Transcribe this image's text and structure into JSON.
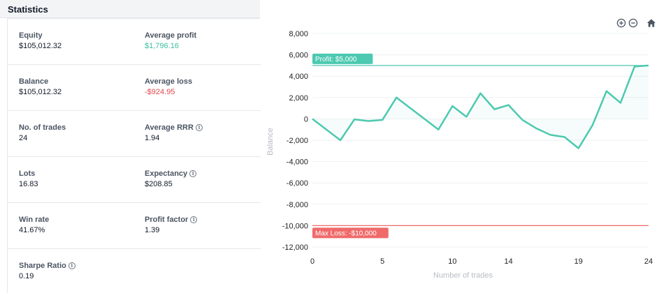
{
  "statistics": {
    "title": "Statistics",
    "rows": [
      {
        "left": {
          "label": "Equity",
          "value": "$105,012.32",
          "info": false
        },
        "right": {
          "label": "Average profit",
          "value": "$1,796.16",
          "info": false,
          "tone": "pos"
        }
      },
      {
        "left": {
          "label": "Balance",
          "value": "$105,012.32",
          "info": false
        },
        "right": {
          "label": "Average loss",
          "value": "-$924.95",
          "info": false,
          "tone": "neg"
        }
      },
      {
        "left": {
          "label": "No. of trades",
          "value": "24",
          "info": false
        },
        "right": {
          "label": "Average RRR",
          "value": "1.94",
          "info": true
        }
      },
      {
        "left": {
          "label": "Lots",
          "value": "16.83",
          "info": false
        },
        "right": {
          "label": "Expectancy",
          "value": "$208.85",
          "info": true
        }
      },
      {
        "left": {
          "label": "Win rate",
          "value": "41.67%",
          "info": false
        },
        "right": {
          "label": "Profit factor",
          "value": "1.39",
          "info": true
        }
      },
      {
        "left": {
          "label": "Sharpe Ratio",
          "value": "0.19",
          "info": true
        }
      }
    ],
    "info_icon": "info-icon",
    "colors": {
      "positive": "#3cbfa1",
      "negative": "#e5484d"
    }
  },
  "toolbar": {
    "icons": [
      "zoom-in-icon",
      "zoom-out-icon",
      "home-icon"
    ]
  },
  "chart_data": {
    "type": "line",
    "xlabel": "Number of trades",
    "ylabel": "Balance",
    "xlim": [
      0,
      24
    ],
    "ylim": [
      -12000,
      8000
    ],
    "xticks": [
      0,
      5,
      10,
      14,
      19,
      24
    ],
    "yticks": [
      8000,
      6000,
      4000,
      2000,
      0,
      -2000,
      -4000,
      -6000,
      -8000,
      -10000,
      -12000
    ],
    "ytick_labels": [
      "8,000",
      "6,000",
      "4,000",
      "2,000",
      "0",
      "-2,000",
      "-4,000",
      "-6,000",
      "-8,000",
      "-10,000",
      "-12,000"
    ],
    "grid": true,
    "series": [
      {
        "x": [
          0,
          1,
          2,
          3,
          4,
          5,
          6,
          7,
          8,
          9,
          10,
          11,
          12,
          13,
          14,
          15,
          16,
          17,
          18,
          19,
          20,
          21,
          22,
          23,
          24
        ],
        "values": [
          0,
          -1000,
          -2000,
          -50,
          -200,
          -100,
          2000,
          1000,
          0,
          -1000,
          1200,
          200,
          2400,
          900,
          1300,
          -100,
          -900,
          -1500,
          -1700,
          -2750,
          -600,
          2600,
          1500,
          4900,
          5000
        ],
        "color": "#4cc9b0"
      }
    ],
    "annotations": [
      {
        "label": "Profit: $5,000",
        "y": 5000,
        "color": "#4cc9b0"
      },
      {
        "label": "Max Loss: -$10,000",
        "y": -10000,
        "color": "#f06a6a"
      }
    ]
  }
}
